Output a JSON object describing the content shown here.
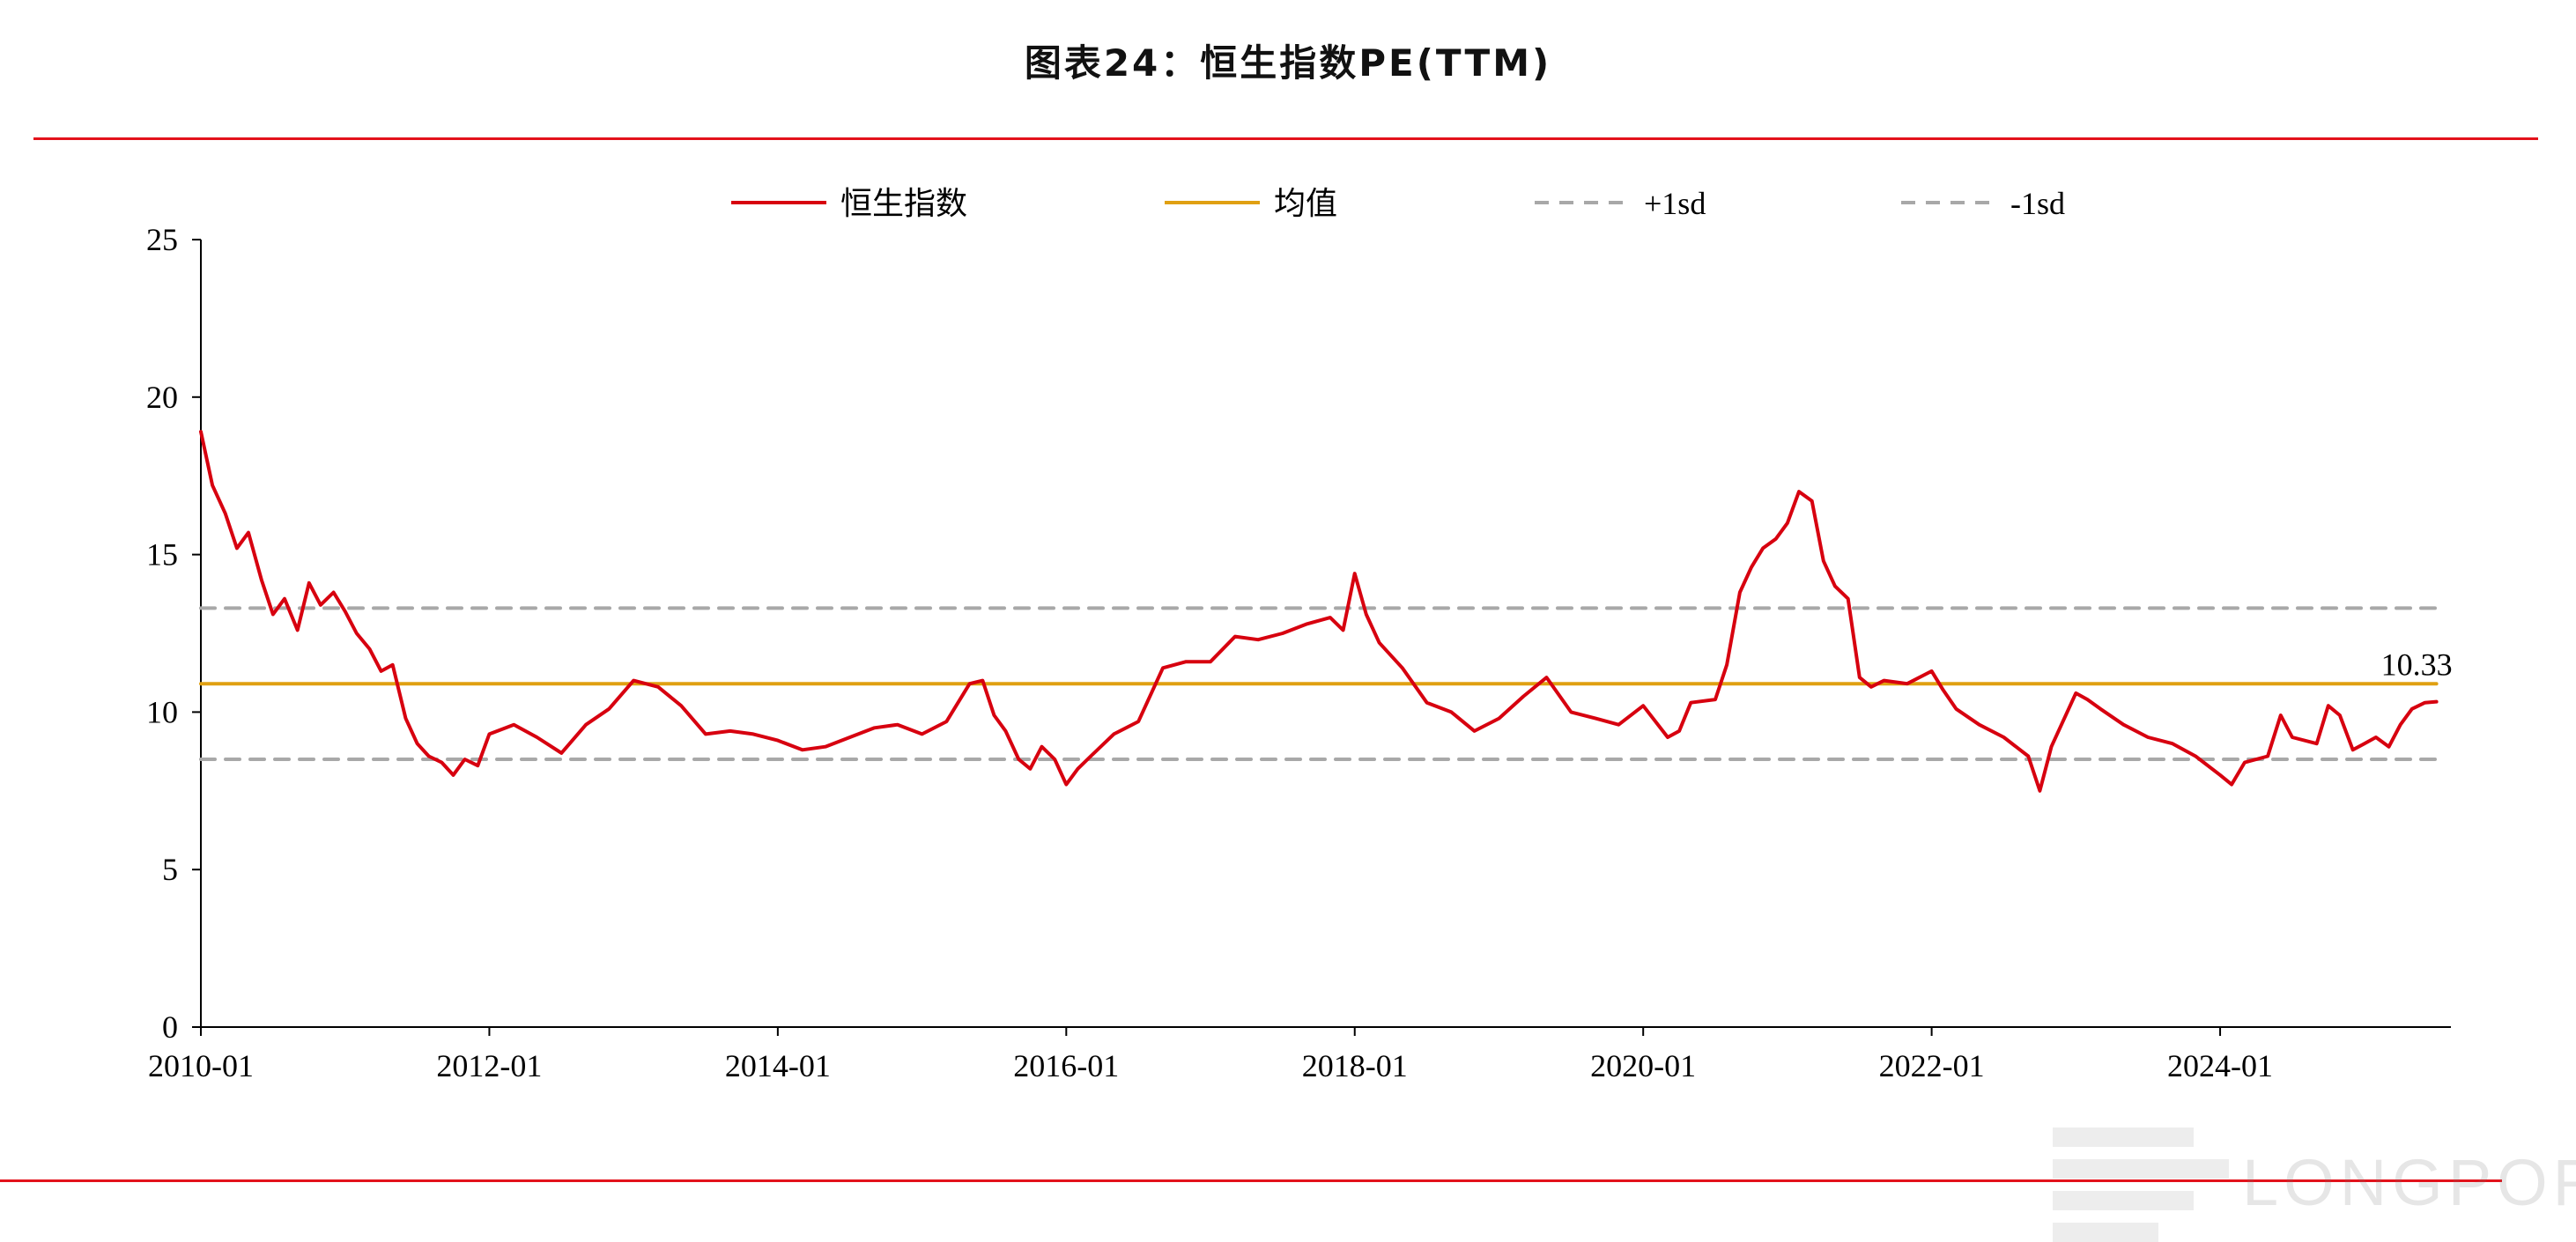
{
  "title": "图表24：恒生指数PE(TTM)",
  "colors": {
    "rule": "#e3121b",
    "series": "#d7000f",
    "mean": "#e0a012",
    "sd": "#a8a8a8",
    "axis": "#000000"
  },
  "watermark": {
    "text": "LONGPORT"
  },
  "chart_data": {
    "type": "line",
    "title": "图表24：恒生指数PE(TTM)",
    "xlabel": "",
    "ylabel": "",
    "ylim": [
      0,
      25
    ],
    "yticks": [
      "0",
      "5",
      "10",
      "15",
      "20",
      "25"
    ],
    "xlim": [
      2010.0,
      2025.6
    ],
    "xticks": [
      "2010-01",
      "2012-01",
      "2014-01",
      "2016-01",
      "2018-01",
      "2020-01",
      "2022-01",
      "2024-01"
    ],
    "legend": {
      "placement": "top-center",
      "entries": [
        "恒生指数",
        "均值",
        "+1sd",
        "-1sd"
      ]
    },
    "grid": false,
    "series": [
      {
        "name": "恒生指数",
        "style": "solid",
        "x": [
          2010.0,
          2010.08,
          2010.17,
          2010.25,
          2010.33,
          2010.42,
          2010.5,
          2010.58,
          2010.67,
          2010.75,
          2010.83,
          2010.92,
          2011.0,
          2011.08,
          2011.17,
          2011.25,
          2011.33,
          2011.42,
          2011.5,
          2011.58,
          2011.67,
          2011.75,
          2011.83,
          2011.92,
          2012.0,
          2012.17,
          2012.33,
          2012.5,
          2012.67,
          2012.83,
          2013.0,
          2013.17,
          2013.33,
          2013.5,
          2013.67,
          2013.83,
          2014.0,
          2014.17,
          2014.33,
          2014.5,
          2014.67,
          2014.83,
          2015.0,
          2015.17,
          2015.33,
          2015.42,
          2015.5,
          2015.58,
          2015.67,
          2015.75,
          2015.83,
          2015.92,
          2016.0,
          2016.08,
          2016.17,
          2016.33,
          2016.5,
          2016.67,
          2016.83,
          2017.0,
          2017.17,
          2017.33,
          2017.5,
          2017.67,
          2017.83,
          2017.92,
          2018.0,
          2018.08,
          2018.17,
          2018.33,
          2018.5,
          2018.67,
          2018.83,
          2019.0,
          2019.17,
          2019.33,
          2019.5,
          2019.67,
          2019.83,
          2020.0,
          2020.17,
          2020.25,
          2020.33,
          2020.5,
          2020.58,
          2020.67,
          2020.75,
          2020.83,
          2020.92,
          2021.0,
          2021.08,
          2021.17,
          2021.25,
          2021.33,
          2021.42,
          2021.5,
          2021.58,
          2021.67,
          2021.83,
          2022.0,
          2022.08,
          2022.17,
          2022.33,
          2022.5,
          2022.67,
          2022.75,
          2022.83,
          2023.0,
          2023.08,
          2023.17,
          2023.33,
          2023.5,
          2023.67,
          2023.83,
          2024.0,
          2024.08,
          2024.17,
          2024.33,
          2024.42,
          2024.5,
          2024.67,
          2024.75,
          2024.83,
          2024.92,
          2025.0,
          2025.08,
          2025.17,
          2025.25,
          2025.33,
          2025.42,
          2025.5
        ],
        "y": [
          18.9,
          17.2,
          16.3,
          15.2,
          15.7,
          14.2,
          13.1,
          13.6,
          12.6,
          14.1,
          13.4,
          13.8,
          13.2,
          12.5,
          12.0,
          11.3,
          11.5,
          9.8,
          9.0,
          8.6,
          8.4,
          8.0,
          8.5,
          8.3,
          9.3,
          9.6,
          9.2,
          8.7,
          9.6,
          10.1,
          11.0,
          10.8,
          10.2,
          9.3,
          9.4,
          9.3,
          9.1,
          8.8,
          8.9,
          9.2,
          9.5,
          9.6,
          9.3,
          9.7,
          10.9,
          11.0,
          9.9,
          9.4,
          8.5,
          8.2,
          8.9,
          8.5,
          7.7,
          8.2,
          8.6,
          9.3,
          9.7,
          11.4,
          11.6,
          11.6,
          12.4,
          12.3,
          12.5,
          12.8,
          13.0,
          12.6,
          14.4,
          13.1,
          12.2,
          11.4,
          10.3,
          10.0,
          9.4,
          9.8,
          10.5,
          11.1,
          10.0,
          9.8,
          9.6,
          10.2,
          9.2,
          9.4,
          10.3,
          10.4,
          11.5,
          13.8,
          14.6,
          15.2,
          15.5,
          16.0,
          17.0,
          16.7,
          14.8,
          14.0,
          13.6,
          11.1,
          10.8,
          11.0,
          10.9,
          11.3,
          10.7,
          10.1,
          9.6,
          9.2,
          8.6,
          7.5,
          8.9,
          10.6,
          10.4,
          10.1,
          9.6,
          9.2,
          9.0,
          8.6,
          8.0,
          7.7,
          8.4,
          8.6,
          9.9,
          9.2,
          9.0,
          10.2,
          9.9,
          8.8,
          9.0,
          9.2,
          8.9,
          9.6,
          10.1,
          10.3,
          10.33
        ]
      },
      {
        "name": "均值",
        "style": "solid",
        "x": [
          2010.0,
          2025.5
        ],
        "y": [
          10.9,
          10.9
        ]
      },
      {
        "name": "+1sd",
        "style": "dashed",
        "x": [
          2010.0,
          2025.5
        ],
        "y": [
          13.3,
          13.3
        ]
      },
      {
        "name": "-1sd",
        "style": "dashed",
        "x": [
          2010.0,
          2025.5
        ],
        "y": [
          8.5,
          8.5
        ]
      }
    ],
    "annotations": [
      {
        "text": "10.33",
        "x": 2025.5,
        "y": 10.33
      }
    ]
  }
}
